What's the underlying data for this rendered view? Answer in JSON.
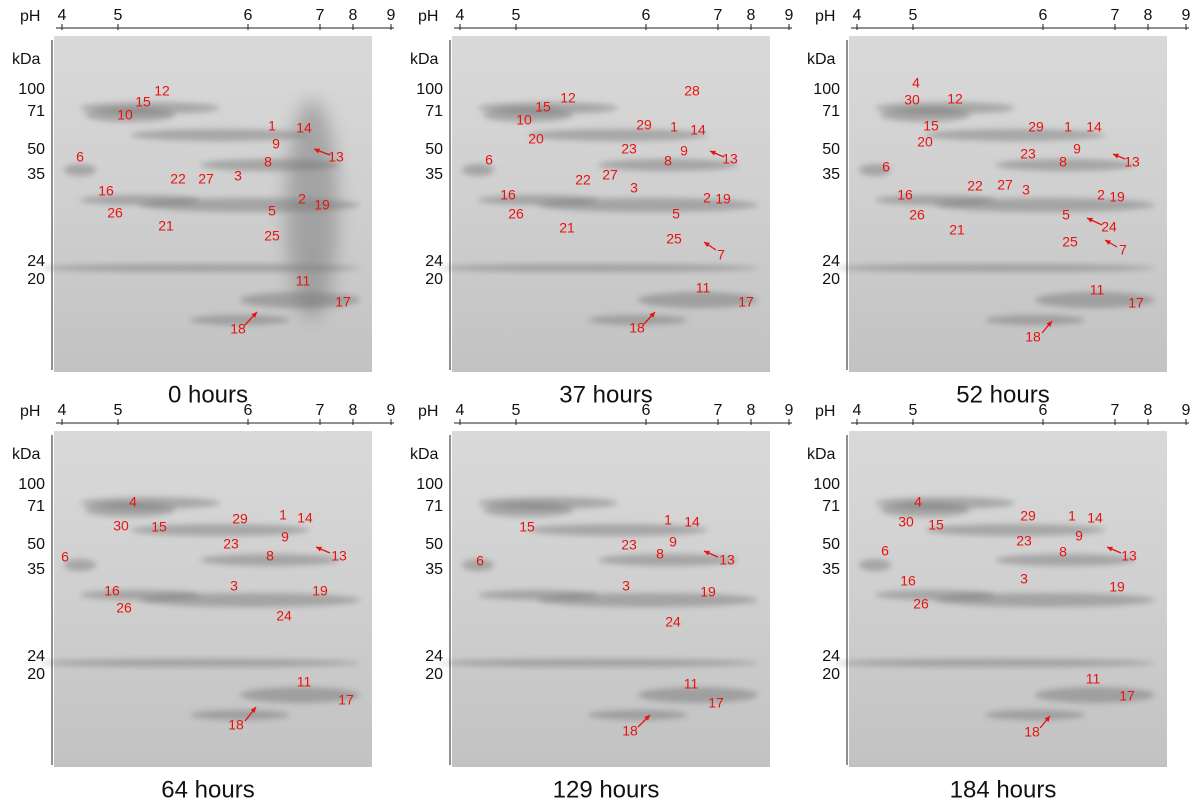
{
  "ph_axis": {
    "label": "pH",
    "ticks": [
      "4",
      "5",
      "6",
      "7",
      "8",
      "9"
    ]
  },
  "mw_axis": {
    "label": "kDa",
    "ticks": [
      "100",
      "71",
      "50",
      "35",
      "24",
      "20"
    ]
  },
  "panels": [
    {
      "caption": "0 hours",
      "spots": [
        "12",
        "15",
        "10",
        "1",
        "14",
        "9",
        "13",
        "6",
        "8",
        "22",
        "27",
        "3",
        "16",
        "2",
        "19",
        "26",
        "5",
        "21",
        "25",
        "11",
        "17",
        "18"
      ]
    },
    {
      "caption": "37 hours",
      "spots": [
        "28",
        "12",
        "15",
        "10",
        "29",
        "1",
        "14",
        "20",
        "23",
        "9",
        "8",
        "13",
        "6",
        "27",
        "22",
        "3",
        "16",
        "2",
        "19",
        "26",
        "5",
        "21",
        "25",
        "7",
        "11",
        "17",
        "18"
      ]
    },
    {
      "caption": "52 hours",
      "spots": [
        "4",
        "30",
        "12",
        "15",
        "29",
        "1",
        "14",
        "20",
        "9",
        "23",
        "8",
        "13",
        "6",
        "22",
        "27",
        "3",
        "16",
        "2",
        "19",
        "26",
        "5",
        "24",
        "21",
        "25",
        "7",
        "11",
        "17",
        "18"
      ]
    },
    {
      "caption": "64 hours",
      "spots": [
        "4",
        "30",
        "15",
        "29",
        "1",
        "14",
        "9",
        "23",
        "13",
        "8",
        "6",
        "3",
        "19",
        "16",
        "26",
        "24",
        "11",
        "17",
        "18"
      ]
    },
    {
      "caption": "129 hours",
      "spots": [
        "15",
        "1",
        "14",
        "9",
        "23",
        "13",
        "8",
        "6",
        "3",
        "19",
        "24",
        "11",
        "17",
        "18"
      ]
    },
    {
      "caption": "184 hours",
      "spots": [
        "4",
        "30",
        "15",
        "29",
        "1",
        "14",
        "9",
        "23",
        "13",
        "8",
        "6",
        "16",
        "3",
        "19",
        "26",
        "11",
        "17",
        "18"
      ]
    }
  ]
}
